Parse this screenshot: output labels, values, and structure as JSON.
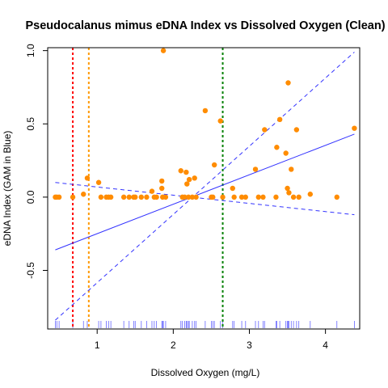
{
  "chart_data": {
    "type": "scatter",
    "title": "Pseudocalanus mimus eDNA Index vs Dissolved Oxygen (Clean)",
    "xlabel": "Dissolved Oxygen (mg/L)",
    "ylabel": "eDNA Index (GAM in Blue)",
    "xlim": [
      0.35,
      4.45
    ],
    "ylim": [
      -0.9,
      1.02
    ],
    "x_ticks": [
      1,
      2,
      3,
      4
    ],
    "y_ticks": [
      -0.5,
      0.0,
      0.5,
      1.0
    ],
    "x_tick_labels": [
      "1",
      "2",
      "3",
      "4"
    ],
    "y_tick_labels": [
      "-0.5",
      "0.0",
      "0.5",
      "1.0"
    ],
    "colors": {
      "points": "#ff8c00",
      "fit": "#3333ff",
      "rug": "#6666ff",
      "vline_red": "#ff0000",
      "vline_orange": "#ff9900",
      "vline_green": "#008000",
      "box": "#000000"
    },
    "points": [
      {
        "x": 0.45,
        "y": 0.0
      },
      {
        "x": 0.47,
        "y": 0.0
      },
      {
        "x": 0.5,
        "y": 0.0
      },
      {
        "x": 0.68,
        "y": 0.0
      },
      {
        "x": 0.82,
        "y": 0.02
      },
      {
        "x": 0.87,
        "y": 0.13
      },
      {
        "x": 1.02,
        "y": 0.1
      },
      {
        "x": 1.05,
        "y": 0.0
      },
      {
        "x": 1.12,
        "y": 0.0
      },
      {
        "x": 1.15,
        "y": 0.0
      },
      {
        "x": 1.18,
        "y": 0.0
      },
      {
        "x": 1.35,
        "y": 0.0
      },
      {
        "x": 1.42,
        "y": 0.0
      },
      {
        "x": 1.48,
        "y": 0.0
      },
      {
        "x": 1.5,
        "y": 0.0
      },
      {
        "x": 1.58,
        "y": 0.0
      },
      {
        "x": 1.65,
        "y": 0.0
      },
      {
        "x": 1.72,
        "y": 0.04
      },
      {
        "x": 1.75,
        "y": 0.0
      },
      {
        "x": 1.78,
        "y": 0.0
      },
      {
        "x": 1.85,
        "y": 0.06
      },
      {
        "x": 1.85,
        "y": 0.11
      },
      {
        "x": 1.86,
        "y": 0.0
      },
      {
        "x": 1.87,
        "y": 1.0
      },
      {
        "x": 1.9,
        "y": 0.0
      },
      {
        "x": 2.1,
        "y": 0.18
      },
      {
        "x": 2.12,
        "y": 0.0
      },
      {
        "x": 2.15,
        "y": 0.0
      },
      {
        "x": 2.17,
        "y": 0.17
      },
      {
        "x": 2.18,
        "y": 0.09
      },
      {
        "x": 2.2,
        "y": 0.0
      },
      {
        "x": 2.21,
        "y": 0.12
      },
      {
        "x": 2.25,
        "y": 0.0
      },
      {
        "x": 2.28,
        "y": 0.13
      },
      {
        "x": 2.3,
        "y": 0.0
      },
      {
        "x": 2.42,
        "y": 0.59
      },
      {
        "x": 2.5,
        "y": 0.0
      },
      {
        "x": 2.52,
        "y": 0.0
      },
      {
        "x": 2.54,
        "y": 0.22
      },
      {
        "x": 2.62,
        "y": 0.52
      },
      {
        "x": 2.65,
        "y": 0.0
      },
      {
        "x": 2.78,
        "y": 0.06
      },
      {
        "x": 2.8,
        "y": 0.0
      },
      {
        "x": 2.9,
        "y": 0.0
      },
      {
        "x": 2.95,
        "y": 0.0
      },
      {
        "x": 3.08,
        "y": 0.19
      },
      {
        "x": 3.12,
        "y": 0.0
      },
      {
        "x": 3.18,
        "y": 0.0
      },
      {
        "x": 3.2,
        "y": 0.46
      },
      {
        "x": 3.35,
        "y": 0.0
      },
      {
        "x": 3.36,
        "y": 0.34
      },
      {
        "x": 3.4,
        "y": 0.53
      },
      {
        "x": 3.48,
        "y": 0.3
      },
      {
        "x": 3.5,
        "y": 0.06
      },
      {
        "x": 3.51,
        "y": 0.78
      },
      {
        "x": 3.52,
        "y": 0.03
      },
      {
        "x": 3.55,
        "y": 0.19
      },
      {
        "x": 3.58,
        "y": 0.0
      },
      {
        "x": 3.62,
        "y": 0.46
      },
      {
        "x": 3.65,
        "y": 0.0
      },
      {
        "x": 3.8,
        "y": 0.02
      },
      {
        "x": 4.15,
        "y": 0.0
      },
      {
        "x": 4.38,
        "y": 0.47
      }
    ],
    "fit_line": {
      "x": [
        0.45,
        4.38
      ],
      "y": [
        -0.36,
        0.43
      ]
    },
    "ci_upper": {
      "x": [
        0.45,
        4.38
      ],
      "y": [
        0.1,
        -0.12
      ]
    },
    "ci_lower": {
      "x": [
        0.45,
        4.38
      ],
      "y": [
        -0.84,
        0.99
      ]
    },
    "vlines": [
      {
        "x": 0.68,
        "color": "vline_red"
      },
      {
        "x": 0.89,
        "color": "vline_orange"
      },
      {
        "x": 2.65,
        "color": "vline_green"
      }
    ],
    "rug": [
      0.45,
      0.47,
      0.5,
      0.68,
      0.82,
      0.87,
      1.02,
      1.05,
      1.12,
      1.15,
      1.18,
      1.35,
      1.42,
      1.48,
      1.5,
      1.58,
      1.65,
      1.72,
      1.75,
      1.78,
      1.85,
      1.86,
      1.87,
      1.9,
      2.1,
      2.12,
      2.15,
      2.17,
      2.18,
      2.2,
      2.21,
      2.25,
      2.28,
      2.3,
      2.42,
      2.5,
      2.52,
      2.54,
      2.62,
      2.65,
      2.78,
      2.8,
      2.9,
      2.95,
      3.08,
      3.12,
      3.18,
      3.2,
      3.35,
      3.36,
      3.4,
      3.48,
      3.5,
      3.51,
      3.52,
      3.55,
      3.58,
      3.62,
      3.65,
      3.8,
      4.15,
      4.38
    ],
    "grid": false,
    "legend": "none"
  }
}
